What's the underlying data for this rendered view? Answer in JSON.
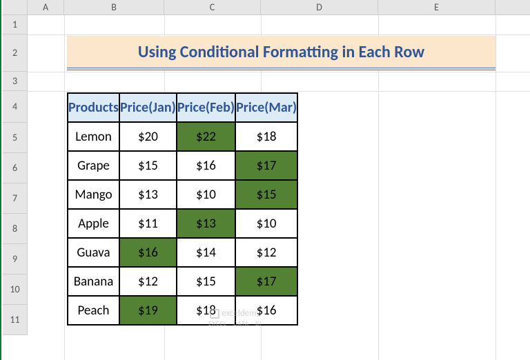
{
  "columns": [
    "A",
    "B",
    "C",
    "D",
    "E"
  ],
  "rows": [
    "1",
    "2",
    "3",
    "4",
    "5",
    "6",
    "7",
    "8",
    "9",
    "10",
    "11"
  ],
  "title": "Using Conditional Formatting in Each Row",
  "title_bg": "#fce7cd",
  "title_color": "#2f5597",
  "title_underline_color": "#4472c4",
  "header_bg": "#ddebf7",
  "header_color": "#2f5597",
  "highlight_bg": "#548235",
  "cell_bg": "#ffffff",
  "border_color": "#000000",
  "table": {
    "headers": [
      "Products",
      "Price(Jan)",
      "Price(Feb)",
      "Price(Mar)"
    ],
    "data": [
      {
        "product": "Lemon",
        "jan": "$20",
        "feb": "$22",
        "mar": "$18",
        "hl": [
          false,
          true,
          false
        ]
      },
      {
        "product": "Grape",
        "jan": "$15",
        "feb": "$16",
        "mar": "$17",
        "hl": [
          false,
          false,
          true
        ]
      },
      {
        "product": "Mango",
        "jan": "$13",
        "feb": "$10",
        "mar": "$15",
        "hl": [
          false,
          false,
          true
        ]
      },
      {
        "product": "Apple",
        "jan": "$11",
        "feb": "$13",
        "mar": "$10",
        "hl": [
          false,
          true,
          false
        ]
      },
      {
        "product": "Guava",
        "jan": "$16",
        "feb": "$14",
        "mar": "$12",
        "hl": [
          true,
          false,
          false
        ]
      },
      {
        "product": "Banana",
        "jan": "$12",
        "feb": "$15",
        "mar": "$17",
        "hl": [
          false,
          false,
          true
        ]
      },
      {
        "product": "Peach",
        "jan": "$19",
        "feb": "$18",
        "mar": "$16",
        "hl": [
          true,
          false,
          false
        ]
      }
    ]
  },
  "watermark": {
    "main": "exceldemy",
    "sub": "EXCEL · DATA · BI"
  }
}
